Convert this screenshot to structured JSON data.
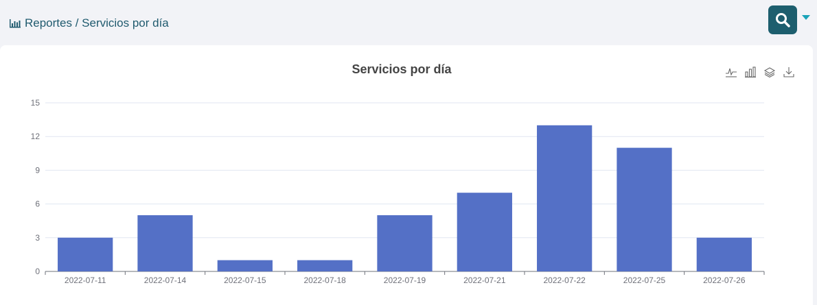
{
  "header": {
    "breadcrumb": "Reportes / Servicios por día",
    "icons": {
      "breadcrumb": "bar-chart-icon",
      "search": "search-icon",
      "dropdown": "caret-down-icon"
    }
  },
  "colors": {
    "bar": "#5470c6",
    "accent": "#1d5e6e",
    "caret": "#1aa3b8"
  },
  "toolbox": [
    {
      "name": "line-chart-icon"
    },
    {
      "name": "bar-chart-icon"
    },
    {
      "name": "stack-icon"
    },
    {
      "name": "download-icon"
    }
  ],
  "chart_data": {
    "type": "bar",
    "title": "Servicios por día",
    "categories": [
      "2022-07-11",
      "2022-07-14",
      "2022-07-15",
      "2022-07-18",
      "2022-07-19",
      "2022-07-21",
      "2022-07-22",
      "2022-07-25",
      "2022-07-26"
    ],
    "values": [
      3,
      5,
      1,
      1,
      5,
      7,
      13,
      11,
      3
    ],
    "xlabel": "",
    "ylabel": "",
    "ylim": [
      0,
      15
    ],
    "yticks": [
      0,
      3,
      6,
      9,
      12,
      15
    ],
    "grid": true
  }
}
